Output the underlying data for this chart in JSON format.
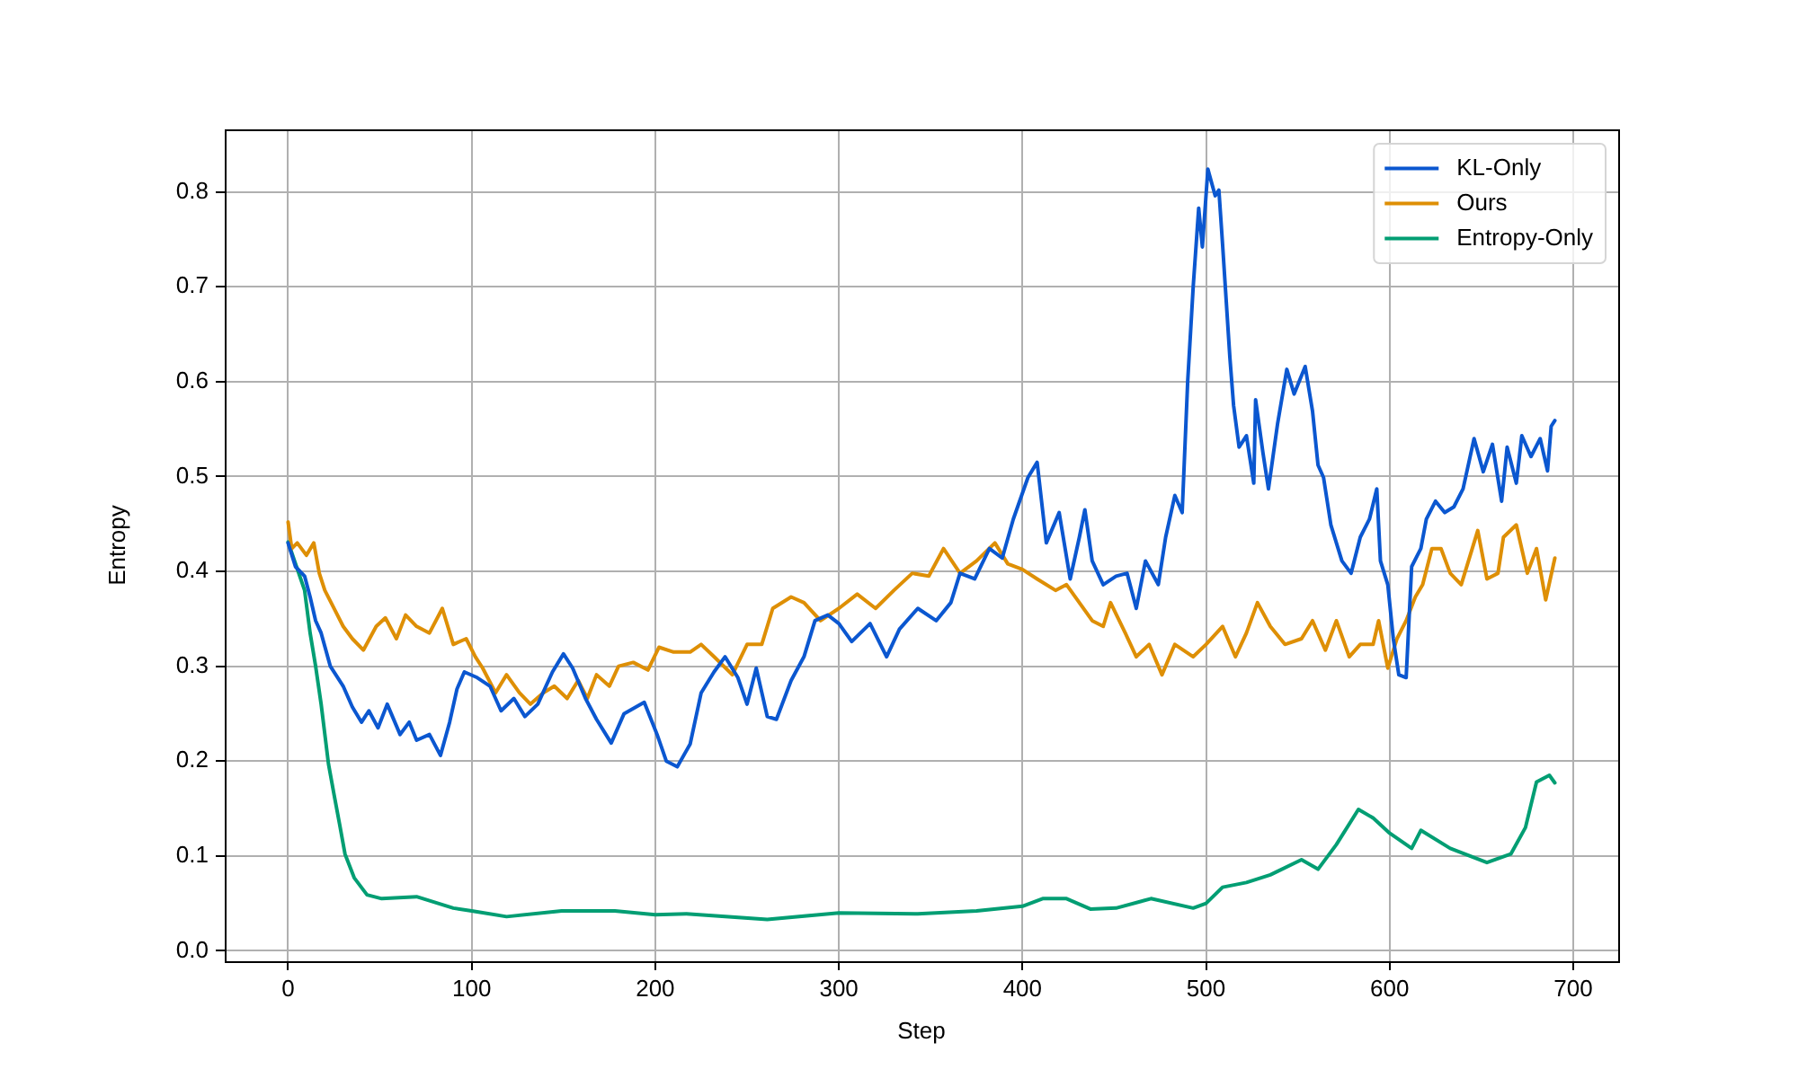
{
  "chart_data": {
    "type": "line",
    "xlabel": "Step",
    "ylabel": "Entropy",
    "xlim": [
      -34.5,
      724.5
    ],
    "ylim": [
      -0.011,
      0.866
    ],
    "xticks": [
      0,
      100,
      200,
      300,
      400,
      500,
      600,
      700
    ],
    "yticks": [
      {
        "value": 0,
        "label": "0.0"
      },
      0.1,
      0.2,
      0.3,
      0.4,
      0.5,
      0.6,
      0.7,
      0.8
    ],
    "grid": true,
    "legend": "top right",
    "series": [
      {
        "name": "KL-Only",
        "color": "#0b57d0",
        "x": [
          0,
          4,
          9,
          12,
          15,
          18,
          23,
          30,
          35,
          40,
          44,
          49,
          54,
          61,
          66,
          70,
          77,
          83,
          88,
          92,
          96,
          103,
          110,
          116,
          123,
          129,
          136,
          144,
          150,
          155,
          162,
          168,
          176,
          183,
          194,
          201,
          206,
          212,
          219,
          225,
          232,
          238,
          245,
          250,
          255,
          261,
          266,
          274,
          281,
          287,
          294,
          300,
          307,
          317,
          326,
          333,
          343,
          353,
          361,
          366,
          374,
          382,
          389,
          395,
          403,
          408,
          413,
          420,
          426,
          431,
          434,
          438,
          444,
          451,
          457,
          462,
          467,
          474,
          478,
          483,
          487,
          490,
          493,
          496,
          498,
          501,
          505,
          507,
          509,
          513,
          515,
          518,
          522,
          526,
          527,
          531,
          534,
          539,
          544,
          548,
          554,
          558,
          561,
          564,
          568,
          574,
          579,
          584,
          589,
          593,
          595,
          599,
          602,
          605,
          609,
          612,
          617,
          620,
          625,
          630,
          635,
          640,
          646,
          651,
          656,
          661,
          664,
          669,
          672,
          677,
          682,
          686,
          688,
          690
        ],
        "values": [
          0.43,
          0.405,
          0.395,
          0.373,
          0.348,
          0.335,
          0.3,
          0.279,
          0.257,
          0.241,
          0.253,
          0.235,
          0.26,
          0.228,
          0.241,
          0.222,
          0.228,
          0.206,
          0.241,
          0.276,
          0.294,
          0.288,
          0.279,
          0.253,
          0.266,
          0.247,
          0.26,
          0.294,
          0.313,
          0.298,
          0.266,
          0.244,
          0.219,
          0.25,
          0.262,
          0.228,
          0.2,
          0.194,
          0.218,
          0.272,
          0.294,
          0.31,
          0.288,
          0.26,
          0.298,
          0.247,
          0.244,
          0.285,
          0.31,
          0.348,
          0.354,
          0.345,
          0.326,
          0.345,
          0.31,
          0.339,
          0.361,
          0.348,
          0.367,
          0.398,
          0.392,
          0.424,
          0.414,
          0.455,
          0.499,
          0.515,
          0.43,
          0.462,
          0.392,
          0.436,
          0.465,
          0.411,
          0.386,
          0.395,
          0.398,
          0.361,
          0.411,
          0.386,
          0.436,
          0.48,
          0.462,
          0.6,
          0.7,
          0.783,
          0.742,
          0.824,
          0.796,
          0.802,
          0.745,
          0.625,
          0.575,
          0.531,
          0.543,
          0.493,
          0.581,
          0.525,
          0.487,
          0.556,
          0.613,
          0.587,
          0.616,
          0.569,
          0.512,
          0.499,
          0.449,
          0.411,
          0.398,
          0.436,
          0.455,
          0.487,
          0.411,
          0.386,
          0.329,
          0.291,
          0.288,
          0.405,
          0.424,
          0.455,
          0.474,
          0.462,
          0.468,
          0.487,
          0.54,
          0.505,
          0.534,
          0.474,
          0.531,
          0.493,
          0.543,
          0.521,
          0.54,
          0.506,
          0.553,
          0.559
        ]
      },
      {
        "name": "Ours",
        "color": "#de8f05",
        "x": [
          0,
          2,
          5,
          10,
          14,
          17,
          20,
          25,
          30,
          35,
          41,
          48,
          53,
          59,
          64,
          70,
          77,
          84,
          90,
          97,
          102,
          106,
          113,
          119,
          126,
          132,
          139,
          145,
          152,
          158,
          163,
          168,
          175,
          180,
          188,
          196,
          202,
          210,
          219,
          225,
          232,
          242,
          250,
          258,
          264,
          274,
          281,
          290,
          300,
          310,
          320,
          330,
          340,
          349,
          357,
          366,
          375,
          385,
          392,
          400,
          408,
          418,
          424,
          431,
          438,
          444,
          448,
          456,
          462,
          469,
          476,
          483,
          493,
          500,
          509,
          516,
          522,
          528,
          535,
          543,
          552,
          558,
          565,
          571,
          578,
          584,
          591,
          594,
          599,
          604,
          609,
          614,
          618,
          623,
          628,
          633,
          639,
          648,
          653,
          659,
          662,
          669,
          675,
          680,
          685,
          690
        ],
        "values": [
          0.452,
          0.424,
          0.43,
          0.417,
          0.43,
          0.398,
          0.38,
          0.361,
          0.342,
          0.329,
          0.317,
          0.342,
          0.351,
          0.329,
          0.354,
          0.342,
          0.335,
          0.361,
          0.323,
          0.329,
          0.31,
          0.298,
          0.272,
          0.291,
          0.272,
          0.26,
          0.272,
          0.279,
          0.266,
          0.285,
          0.266,
          0.291,
          0.279,
          0.3,
          0.304,
          0.296,
          0.32,
          0.315,
          0.315,
          0.323,
          0.31,
          0.291,
          0.323,
          0.323,
          0.361,
          0.373,
          0.367,
          0.348,
          0.361,
          0.376,
          0.361,
          0.38,
          0.398,
          0.395,
          0.424,
          0.398,
          0.411,
          0.43,
          0.408,
          0.402,
          0.392,
          0.38,
          0.386,
          0.367,
          0.348,
          0.342,
          0.367,
          0.335,
          0.31,
          0.323,
          0.291,
          0.323,
          0.31,
          0.323,
          0.342,
          0.31,
          0.335,
          0.367,
          0.342,
          0.323,
          0.329,
          0.348,
          0.317,
          0.348,
          0.31,
          0.323,
          0.323,
          0.348,
          0.298,
          0.329,
          0.348,
          0.373,
          0.386,
          0.424,
          0.424,
          0.398,
          0.386,
          0.443,
          0.392,
          0.398,
          0.436,
          0.449,
          0.398,
          0.424,
          0.37,
          0.414
        ]
      },
      {
        "name": "Entropy-Only",
        "color": "#029e73",
        "x": [
          0,
          9,
          12,
          15,
          18,
          22,
          25,
          28,
          31,
          36,
          43,
          51,
          70,
          90,
          100,
          119,
          149,
          178,
          200,
          217,
          261,
          300,
          343,
          375,
          400,
          411,
          424,
          437,
          451,
          470,
          493,
          500,
          509,
          522,
          535,
          552,
          561,
          571,
          583,
          591,
          600,
          612,
          617,
          633,
          653,
          666,
          674,
          680,
          687,
          690
        ],
        "values": [
          0.431,
          0.38,
          0.335,
          0.3,
          0.26,
          0.197,
          0.165,
          0.134,
          0.102,
          0.077,
          0.059,
          0.055,
          0.057,
          0.045,
          0.042,
          0.036,
          0.042,
          0.042,
          0.038,
          0.039,
          0.033,
          0.04,
          0.039,
          0.042,
          0.047,
          0.055,
          0.055,
          0.044,
          0.045,
          0.055,
          0.045,
          0.05,
          0.067,
          0.072,
          0.08,
          0.096,
          0.086,
          0.112,
          0.149,
          0.14,
          0.124,
          0.108,
          0.127,
          0.108,
          0.093,
          0.102,
          0.13,
          0.178,
          0.185,
          0.177
        ]
      }
    ]
  }
}
